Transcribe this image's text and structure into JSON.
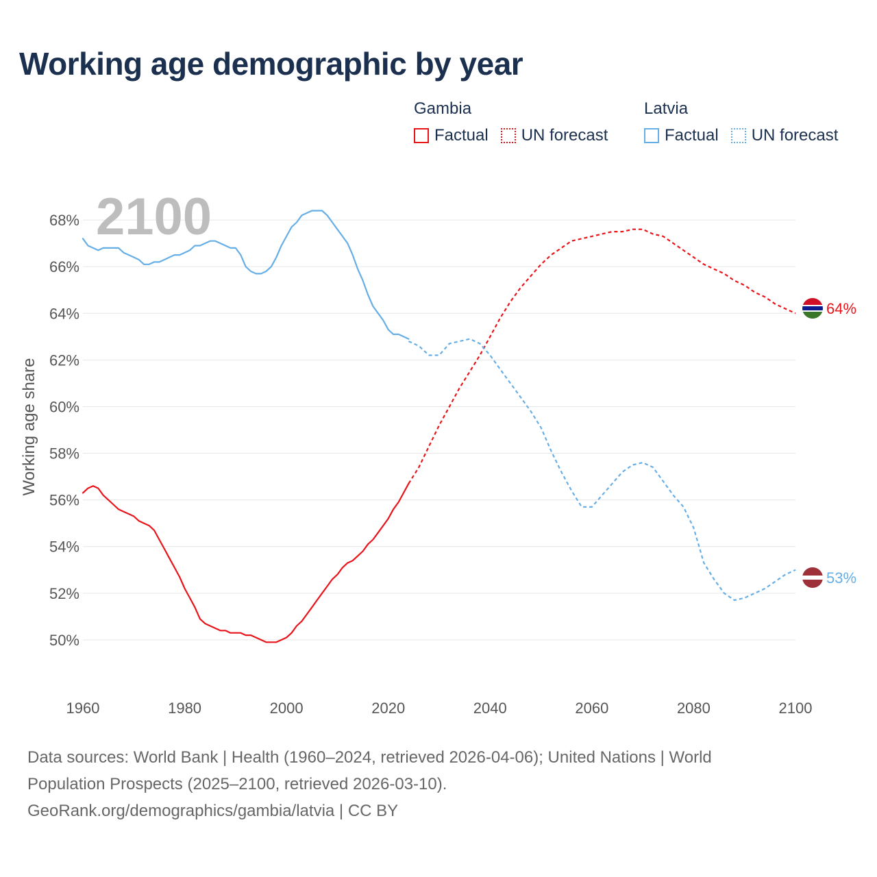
{
  "title": "Working age demographic by year",
  "legend": [
    {
      "group": "Gambia",
      "factual_label": "Factual",
      "forecast_label": "UN forecast",
      "color": "#e8141a"
    },
    {
      "group": "Latvia",
      "factual_label": "Factual",
      "forecast_label": "UN forecast",
      "color": "#66aee6"
    }
  ],
  "year_watermark": "2100",
  "source": {
    "line1": "Data sources: World Bank | Health (1960–2024, retrieved 2026-04-06); United Nations | World",
    "line2": "Population Prospects (2025–2100, retrieved 2026-03-10).",
    "line3": "GeoRank.org/demographics/gambia/latvia | CC BY"
  },
  "chart_data": {
    "type": "line",
    "title": "Working age demographic by year",
    "xlabel": "",
    "ylabel": "Working age share",
    "xlim": [
      1960,
      2100
    ],
    "ylim": [
      48.5,
      69.5
    ],
    "x_ticks": [
      1960,
      1980,
      2000,
      2020,
      2040,
      2060,
      2080,
      2100
    ],
    "x_tick_labels": [
      "1960",
      "1980",
      "2000",
      "2020",
      "2040",
      "2060",
      "2080",
      "2100"
    ],
    "y_ticks": [
      50,
      52,
      54,
      56,
      58,
      60,
      62,
      64,
      66,
      68
    ],
    "y_tick_labels": [
      "50%",
      "52%",
      "54%",
      "56%",
      "58%",
      "60%",
      "62%",
      "64%",
      "66%",
      "68%"
    ],
    "grid": true,
    "series": [
      {
        "name": "Gambia",
        "color": "#e8141a",
        "end_label": "64%",
        "factual": {
          "x": [
            1960,
            1961,
            1962,
            1963,
            1964,
            1965,
            1966,
            1967,
            1968,
            1969,
            1970,
            1971,
            1972,
            1973,
            1974,
            1975,
            1976,
            1977,
            1978,
            1979,
            1980,
            1981,
            1982,
            1983,
            1984,
            1985,
            1986,
            1987,
            1988,
            1989,
            1990,
            1991,
            1992,
            1993,
            1994,
            1995,
            1996,
            1997,
            1998,
            1999,
            2000,
            2001,
            2002,
            2003,
            2004,
            2005,
            2006,
            2007,
            2008,
            2009,
            2010,
            2011,
            2012,
            2013,
            2014,
            2015,
            2016,
            2017,
            2018,
            2019,
            2020,
            2021,
            2022,
            2023,
            2024
          ],
          "y": [
            56.3,
            56.5,
            56.6,
            56.5,
            56.2,
            56.0,
            55.8,
            55.6,
            55.5,
            55.4,
            55.3,
            55.1,
            55.0,
            54.9,
            54.7,
            54.3,
            53.9,
            53.5,
            53.1,
            52.7,
            52.2,
            51.8,
            51.4,
            50.9,
            50.7,
            50.6,
            50.5,
            50.4,
            50.4,
            50.3,
            50.3,
            50.3,
            50.2,
            50.2,
            50.1,
            50.0,
            49.9,
            49.9,
            49.9,
            50.0,
            50.1,
            50.3,
            50.6,
            50.8,
            51.1,
            51.4,
            51.7,
            52.0,
            52.3,
            52.6,
            52.8,
            53.1,
            53.3,
            53.4,
            53.6,
            53.8,
            54.1,
            54.3,
            54.6,
            54.9,
            55.2,
            55.6,
            55.9,
            56.3,
            56.7
          ]
        },
        "forecast": {
          "x": [
            2024,
            2026,
            2028,
            2030,
            2032,
            2034,
            2036,
            2038,
            2040,
            2042,
            2044,
            2046,
            2048,
            2050,
            2052,
            2054,
            2056,
            2058,
            2060,
            2062,
            2064,
            2066,
            2068,
            2070,
            2072,
            2074,
            2076,
            2078,
            2080,
            2082,
            2084,
            2086,
            2088,
            2090,
            2092,
            2094,
            2096,
            2098,
            2100
          ],
          "y": [
            56.7,
            57.4,
            58.3,
            59.2,
            60.0,
            60.8,
            61.5,
            62.2,
            63.0,
            63.8,
            64.5,
            65.1,
            65.6,
            66.1,
            66.5,
            66.8,
            67.1,
            67.2,
            67.3,
            67.4,
            67.5,
            67.5,
            67.6,
            67.6,
            67.4,
            67.3,
            67.0,
            66.7,
            66.4,
            66.1,
            65.9,
            65.7,
            65.4,
            65.2,
            64.9,
            64.7,
            64.4,
            64.2,
            64.0
          ]
        }
      },
      {
        "name": "Latvia",
        "color": "#66aee6",
        "end_label": "53%",
        "factual": {
          "x": [
            1960,
            1961,
            1962,
            1963,
            1964,
            1965,
            1966,
            1967,
            1968,
            1969,
            1970,
            1971,
            1972,
            1973,
            1974,
            1975,
            1976,
            1977,
            1978,
            1979,
            1980,
            1981,
            1982,
            1983,
            1984,
            1985,
            1986,
            1987,
            1988,
            1989,
            1990,
            1991,
            1992,
            1993,
            1994,
            1995,
            1996,
            1997,
            1998,
            1999,
            2000,
            2001,
            2002,
            2003,
            2004,
            2005,
            2006,
            2007,
            2008,
            2009,
            2010,
            2011,
            2012,
            2013,
            2014,
            2015,
            2016,
            2017,
            2018,
            2019,
            2020,
            2021,
            2022,
            2023,
            2024
          ],
          "y": [
            67.2,
            66.9,
            66.8,
            66.7,
            66.8,
            66.8,
            66.8,
            66.8,
            66.6,
            66.5,
            66.4,
            66.3,
            66.1,
            66.1,
            66.2,
            66.2,
            66.3,
            66.4,
            66.5,
            66.5,
            66.6,
            66.7,
            66.9,
            66.9,
            67.0,
            67.1,
            67.1,
            67.0,
            66.9,
            66.8,
            66.8,
            66.5,
            66.0,
            65.8,
            65.7,
            65.7,
            65.8,
            66.0,
            66.4,
            66.9,
            67.3,
            67.7,
            67.9,
            68.2,
            68.3,
            68.4,
            68.4,
            68.4,
            68.2,
            67.9,
            67.6,
            67.3,
            67.0,
            66.5,
            65.9,
            65.4,
            64.8,
            64.3,
            64.0,
            63.7,
            63.3,
            63.1,
            63.1,
            63.0,
            62.9
          ]
        },
        "forecast": {
          "x": [
            2024,
            2026,
            2028,
            2030,
            2032,
            2034,
            2036,
            2038,
            2040,
            2042,
            2044,
            2046,
            2048,
            2050,
            2052,
            2054,
            2056,
            2058,
            2060,
            2062,
            2064,
            2066,
            2068,
            2070,
            2072,
            2074,
            2076,
            2078,
            2080,
            2082,
            2084,
            2086,
            2088,
            2090,
            2092,
            2094,
            2096,
            2098,
            2100
          ],
          "y": [
            62.8,
            62.6,
            62.2,
            62.2,
            62.7,
            62.8,
            62.9,
            62.7,
            62.2,
            61.6,
            61.0,
            60.4,
            59.8,
            59.1,
            58.1,
            57.2,
            56.4,
            55.7,
            55.7,
            56.2,
            56.7,
            57.2,
            57.5,
            57.6,
            57.4,
            56.8,
            56.2,
            55.7,
            54.8,
            53.3,
            52.6,
            52.0,
            51.7,
            51.8,
            52.0,
            52.2,
            52.5,
            52.8,
            53.0
          ]
        }
      }
    ]
  }
}
